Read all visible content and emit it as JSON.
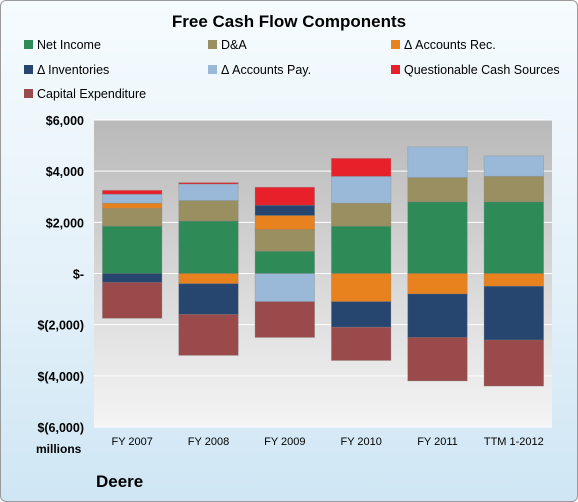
{
  "chart_data": {
    "type": "bar",
    "stacked": true,
    "title": "Free Cash Flow Components",
    "units_label": "millions",
    "company": "Deere",
    "categories": [
      "FY 2007",
      "FY 2008",
      "FY 2009",
      "FY 2010",
      "FY 2011",
      "TTM 1-2012"
    ],
    "ylim": [
      -6000,
      6000
    ],
    "yticks": [
      6000,
      4000,
      2000,
      0,
      -2000,
      -4000,
      -6000
    ],
    "ytick_labels": [
      "$6,000",
      "$4,000",
      "$2,000",
      "$-",
      "$(2,000)",
      "$(4,000)",
      "$(6,000)"
    ],
    "grid": true,
    "legend_position": "top",
    "series": [
      {
        "name": "Net Income",
        "color": "#2e8b57",
        "values": [
          1850,
          2050,
          870,
          1850,
          2800,
          2800
        ]
      },
      {
        "name": "D&A",
        "color": "#9a8f60",
        "values": [
          700,
          800,
          850,
          900,
          950,
          1000
        ]
      },
      {
        "name": "Δ Accounts Rec.",
        "color": "#e8821e",
        "values": [
          200,
          -400,
          550,
          -1100,
          -800,
          -500
        ]
      },
      {
        "name": "Δ Inventories",
        "color": "#26466f",
        "values": [
          -350,
          -1200,
          400,
          -1000,
          -1700,
          -2100
        ]
      },
      {
        "name": "Δ Accounts Pay.",
        "color": "#9ab9d9",
        "values": [
          350,
          650,
          -1100,
          1050,
          1200,
          800
        ]
      },
      {
        "name": "Questionable Cash Sources",
        "color": "#e8202a",
        "values": [
          150,
          50,
          700,
          700,
          0,
          0
        ]
      },
      {
        "name": "Capital Expenditure",
        "color": "#9a4a4a",
        "values": [
          -1400,
          -1600,
          -1400,
          -1300,
          -1700,
          -1800
        ]
      }
    ]
  }
}
